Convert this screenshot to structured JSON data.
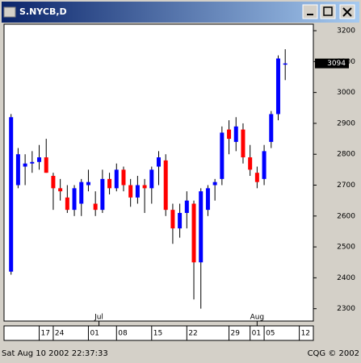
{
  "window": {
    "title": "S.NYCB,D"
  },
  "chart_data": {
    "type": "candlestick",
    "open": [
      2420,
      2700,
      2760,
      2770,
      2775,
      2790,
      2730,
      2690,
      2660,
      2620,
      2640,
      2700,
      2640,
      2620,
      2720,
      2690,
      2750,
      2700,
      2660,
      2700,
      2690,
      2760,
      2780,
      2620,
      2560,
      2610,
      2640,
      2450,
      2620,
      2700,
      2720,
      2880,
      2840,
      2880,
      2790,
      2740,
      2720,
      2840,
      2930,
      3090
    ],
    "high": [
      2930,
      2820,
      2800,
      2810,
      2830,
      2850,
      2740,
      2720,
      2700,
      2700,
      2720,
      2750,
      2680,
      2750,
      2740,
      2770,
      2760,
      2720,
      2730,
      2720,
      2760,
      2810,
      2800,
      2640,
      2640,
      2680,
      2650,
      2690,
      2700,
      2720,
      2890,
      2910,
      2920,
      2900,
      2830,
      2760,
      2830,
      2940,
      3120,
      3140
    ],
    "low": [
      2410,
      2690,
      2700,
      2740,
      2750,
      2740,
      2620,
      2650,
      2610,
      2600,
      2600,
      2680,
      2600,
      2610,
      2670,
      2680,
      2680,
      2630,
      2640,
      2610,
      2640,
      2700,
      2600,
      2510,
      2530,
      2560,
      2330,
      2300,
      2600,
      2650,
      2700,
      2800,
      2810,
      2770,
      2730,
      2690,
      2700,
      2820,
      2910,
      3040
    ],
    "close": [
      2920,
      2800,
      2770,
      2775,
      2790,
      2740,
      2690,
      2680,
      2620,
      2690,
      2710,
      2710,
      2620,
      2720,
      2690,
      2750,
      2700,
      2660,
      2700,
      2690,
      2750,
      2790,
      2620,
      2560,
      2610,
      2650,
      2450,
      2680,
      2690,
      2710,
      2870,
      2850,
      2890,
      2790,
      2750,
      2710,
      2810,
      2930,
      3110,
      3094
    ],
    "up_color": "#0000ff",
    "down_color": "#ff0000",
    "xlim": [
      -1,
      43
    ],
    "ylim": [
      2260,
      3221
    ],
    "yticks": [
      2300,
      2400,
      2500,
      2600,
      2700,
      2800,
      2900,
      3000,
      3100,
      3200
    ],
    "xticks": [
      {
        "value": 4,
        "label": "17"
      },
      {
        "value": 6,
        "label": "24"
      },
      {
        "value": 11,
        "label": "01"
      },
      {
        "value": 15,
        "label": "08"
      },
      {
        "value": 20,
        "label": "15"
      },
      {
        "value": 25,
        "label": "22"
      },
      {
        "value": 31,
        "label": "29"
      },
      {
        "value": 34,
        "label": "01"
      },
      {
        "value": 36,
        "label": "05"
      },
      {
        "value": 41,
        "label": "12"
      }
    ],
    "month_ticks": [
      {
        "value": 12.5,
        "label": "Jul"
      },
      {
        "value": 35,
        "label": "Aug"
      }
    ],
    "last": 3094
  },
  "status": {
    "left": "Sat Aug 10 2002 22:37:33",
    "right": "CQG © 2002"
  }
}
